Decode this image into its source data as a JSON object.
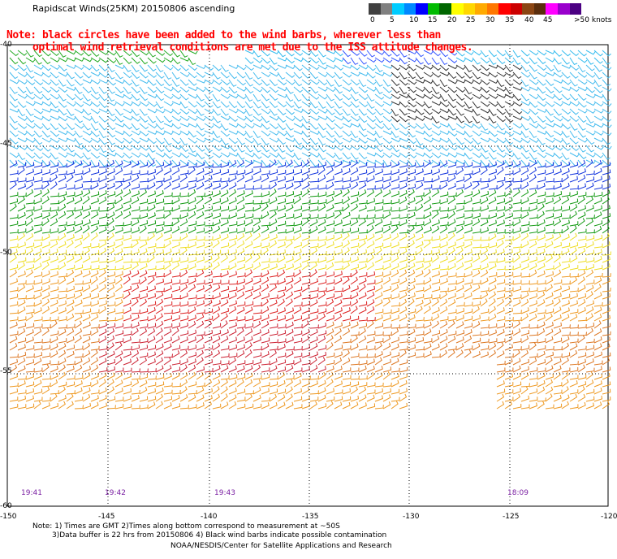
{
  "title": "Rapidscat Winds(25KM) 20150806 ascending",
  "note": {
    "line1": "Note: black circles have been added to the wind barbs, wherever less than",
    "line2": "optimal wind retrieval conditions are met due to the ISS attitude changes."
  },
  "legend": {
    "colors": [
      "#404040",
      "#808080",
      "#00ccff",
      "#0088ff",
      "#0000ff",
      "#00bb00",
      "#006600",
      "#ffff00",
      "#ffd700",
      "#ffaa00",
      "#ff7700",
      "#ff0000",
      "#cc0000",
      "#8b4513",
      "#5a2d0c",
      "#ff00ff",
      "#9900cc",
      "#4b0082"
    ],
    "labels": [
      "0",
      "5",
      "10",
      "15",
      "20",
      "25",
      "30",
      "35",
      "40",
      "45",
      ">50 knots"
    ]
  },
  "axes": {
    "lat_labels": [
      "-40",
      "-45",
      "-50",
      "-55",
      "-60"
    ],
    "lon_labels": [
      "-150",
      "-145",
      "-140",
      "-135",
      "-130",
      "-125",
      "-120"
    ]
  },
  "times": [
    "19:41",
    "19:42",
    "19:43",
    "18:09"
  ],
  "footer": {
    "line1": "Note: 1) Times are GMT 2)Times along bottom correspond to measurement at ~50S",
    "line2": "3)Data buffer is 22 hrs from 20150806 4) Black wind barbs indicate possible contamination",
    "line3": "NOAA/NESDIS/Center for Satellite Applications and Research"
  }
}
